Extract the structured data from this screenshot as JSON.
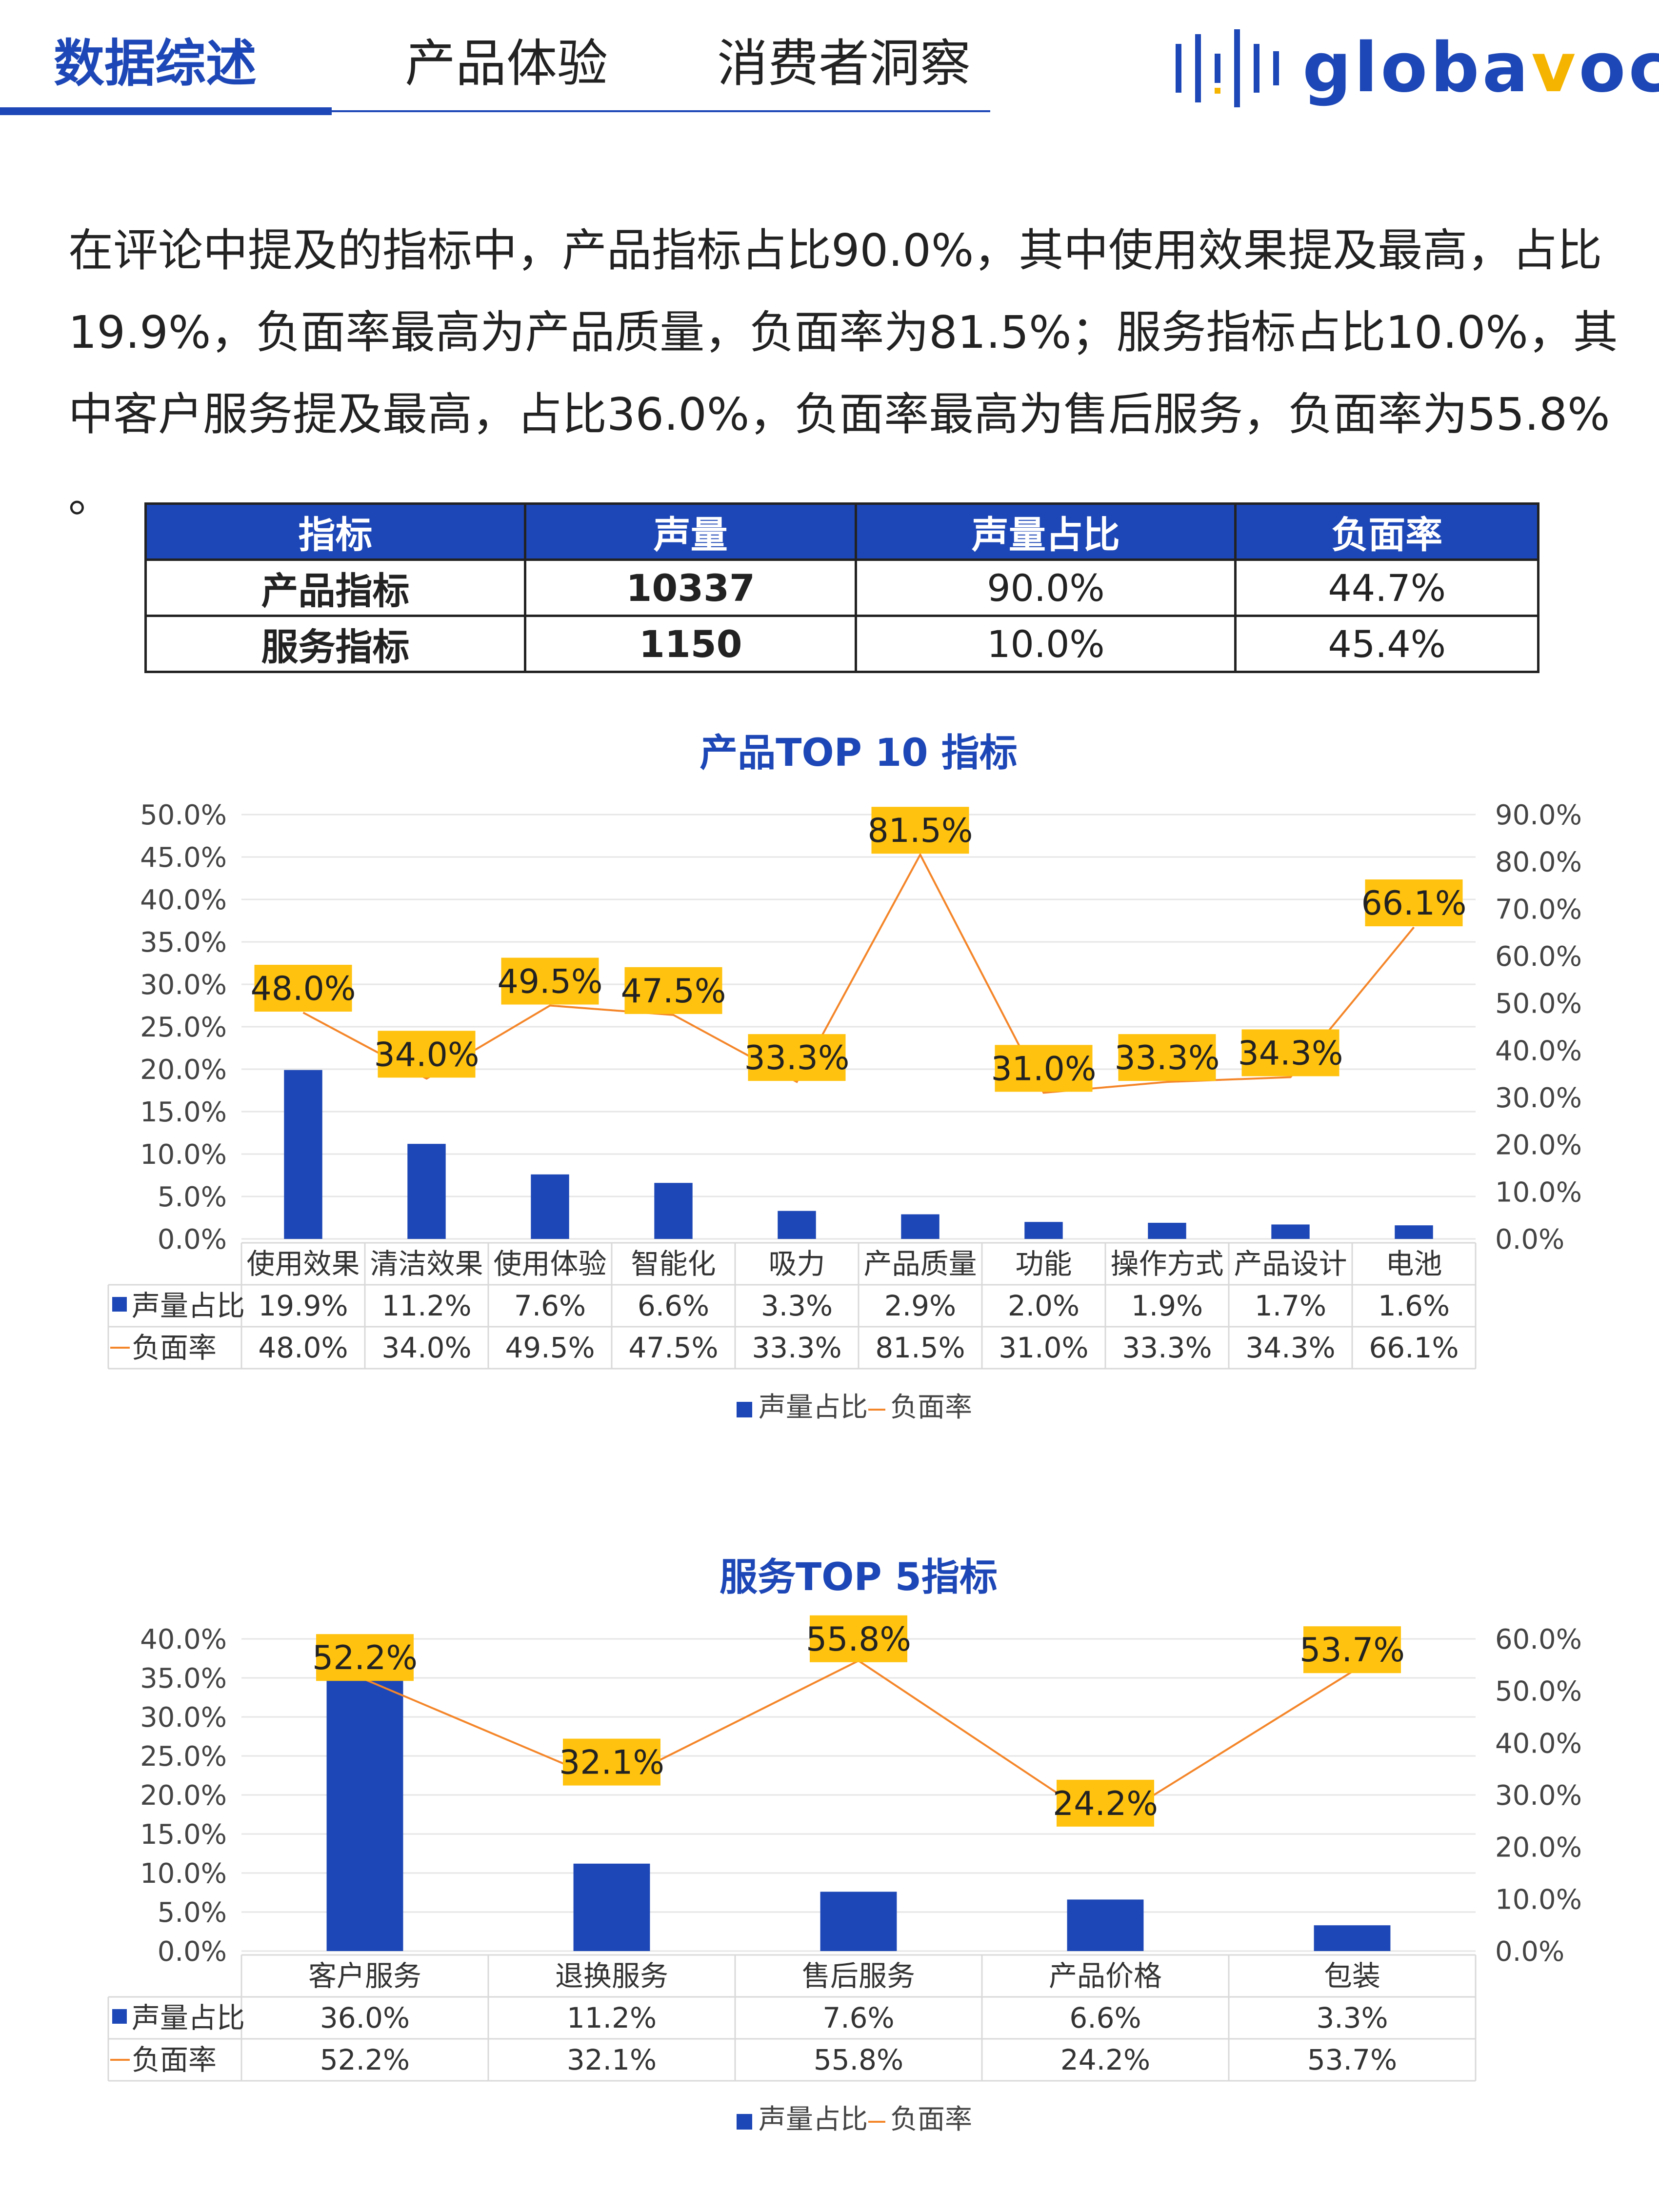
{
  "header": {
    "tabs": [
      {
        "label": "数据综述",
        "active": true
      },
      {
        "label": "产品体验",
        "active": false
      },
      {
        "label": "消费者洞察",
        "active": false
      }
    ],
    "logo_prefix": "globa",
    "logo_accent": "v",
    "logo_suffix": "oc",
    "logo_full": "globavoc"
  },
  "summary": "在评论中提及的指标中，产品指标占比90.0%，其中使用效果提及最高，占比19.9%，负面率最高为产品质量，负面率为81.5%；服务指标占比10.0%，其中客户服务提及最高，占比36.0%，负面率最高为售后服务，负面率为55.8% 。",
  "table": {
    "headers": [
      "指标",
      "声量",
      "声量占比",
      "负面率"
    ],
    "rows": [
      [
        "产品指标",
        "10337",
        "90.0%",
        "44.7%"
      ],
      [
        "服务指标",
        "1150",
        "10.0%",
        "45.4%"
      ]
    ]
  },
  "colors": {
    "brand": "#1d47b6",
    "line": "#f4862a",
    "label_bg": "#ffc20e",
    "accent": "#f5b400"
  },
  "chart_data": [
    {
      "type": "bar+line",
      "title": "产品TOP 10 指标",
      "categories": [
        "使用效果",
        "清洁效果",
        "使用体验",
        "智能化",
        "吸力",
        "产品质量",
        "功能",
        "操作方式",
        "产品设计",
        "电池"
      ],
      "series": [
        {
          "name": "声量占比",
          "type": "bar",
          "axis": "left",
          "values": [
            19.9,
            11.2,
            7.6,
            6.6,
            3.3,
            2.9,
            2.0,
            1.9,
            1.7,
            1.6
          ]
        },
        {
          "name": "负面率",
          "type": "line",
          "axis": "right",
          "values": [
            48.0,
            34.0,
            49.5,
            47.5,
            33.3,
            81.5,
            31.0,
            33.3,
            34.3,
            66.1
          ]
        }
      ],
      "ylim_left": [
        0,
        50
      ],
      "ystep_left": 5,
      "ylim_right": [
        0,
        90
      ],
      "ystep_right": 10,
      "legend": "bottom"
    },
    {
      "type": "bar+line",
      "title": "服务TOP 5指标",
      "categories": [
        "客户服务",
        "退换服务",
        "售后服务",
        "产品价格",
        "包装"
      ],
      "series": [
        {
          "name": "声量占比",
          "type": "bar",
          "axis": "left",
          "values": [
            36.0,
            11.2,
            7.6,
            6.6,
            3.3
          ]
        },
        {
          "name": "负面率",
          "type": "line",
          "axis": "right",
          "values": [
            52.2,
            32.1,
            55.8,
            24.2,
            53.7
          ]
        }
      ],
      "ylim_left": [
        0,
        40
      ],
      "ystep_left": 5,
      "ylim_right": [
        0,
        60
      ],
      "ystep_right": 10,
      "legend": "bottom"
    }
  ]
}
